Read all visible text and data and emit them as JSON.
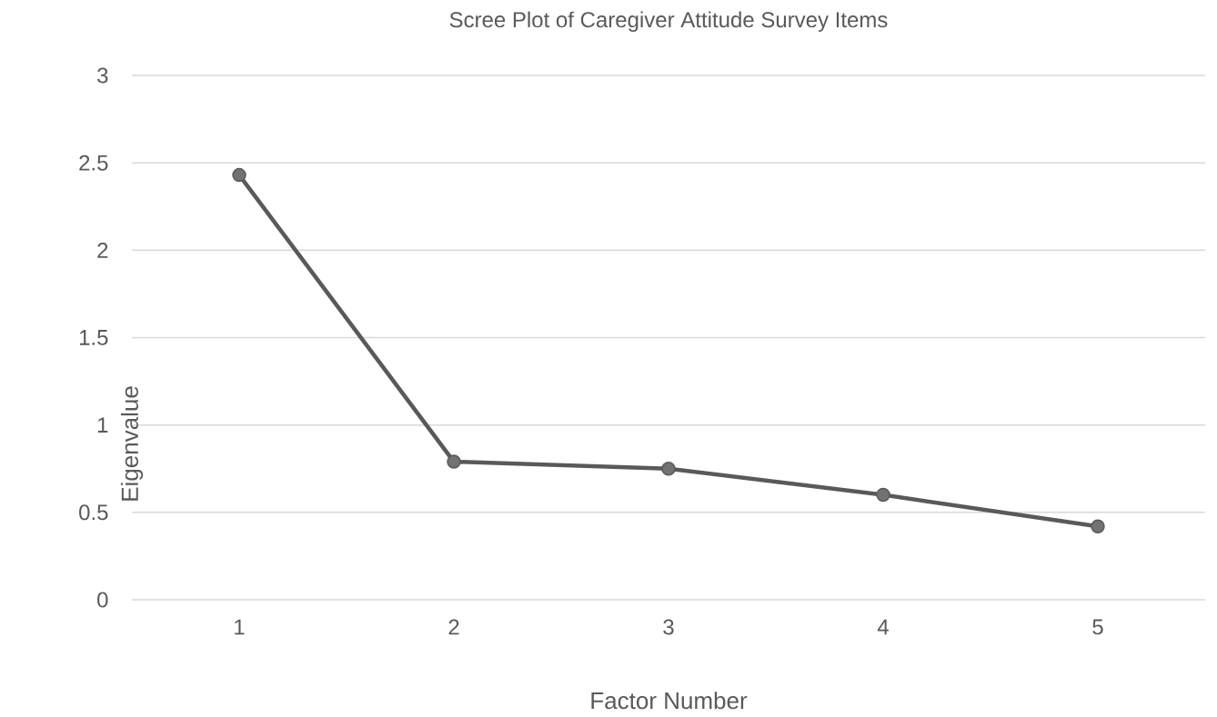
{
  "chart_data": {
    "type": "line",
    "title": "Scree Plot of Caregiver Attitude Survey Items",
    "xlabel": "Factor Number",
    "ylabel": "Eigenvalue",
    "categories": [
      "1",
      "2",
      "3",
      "4",
      "5"
    ],
    "series": [
      {
        "color": "#595959",
        "values": [
          2.43,
          0.79,
          0.75,
          0.6,
          0.42
        ]
      }
    ],
    "ylim": [
      0,
      3
    ],
    "yticks": [
      0,
      0.5,
      1,
      1.5,
      2,
      2.5,
      3
    ],
    "grid": "y",
    "marker": "circle",
    "line_style": "solid"
  }
}
